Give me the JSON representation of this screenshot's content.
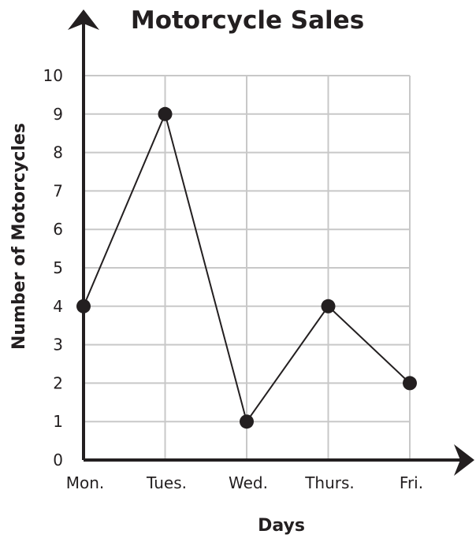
{
  "chart_data": {
    "type": "line",
    "title": "Motorcycle Sales",
    "xlabel": "Days",
    "ylabel": "Number of Motorcycles",
    "categories": [
      "Mon.",
      "Tues.",
      "Wed.",
      "Thurs.",
      "Fri."
    ],
    "series": [
      {
        "values": [
          4,
          9,
          1,
          4,
          2
        ]
      }
    ],
    "ylim": [
      0,
      10
    ],
    "yticks": [
      "0",
      "1",
      "2",
      "3",
      "4",
      "5",
      "6",
      "7",
      "8",
      "9",
      "10"
    ],
    "grid": true,
    "legend": "none",
    "colors": {
      "line": "#231f20",
      "grid": "#c8c8c8",
      "axis": "#231f20"
    }
  }
}
